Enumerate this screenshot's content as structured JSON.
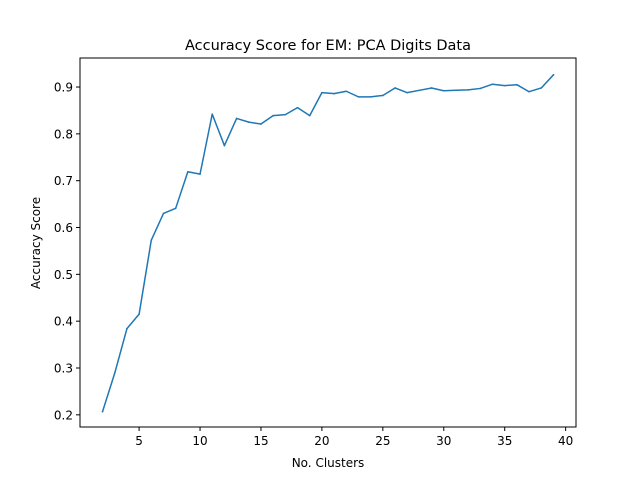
{
  "chart_data": {
    "type": "line",
    "title": "Accuracy Score for EM: PCA Digits Data",
    "xlabel": "No. Clusters",
    "ylabel": "Accuracy Score",
    "xlim": [
      0.15,
      40.85
    ],
    "ylim": [
      0.174,
      0.962
    ],
    "xticks": [
      5,
      10,
      15,
      20,
      25,
      30,
      35,
      40
    ],
    "yticks": [
      0.2,
      0.3,
      0.4,
      0.5,
      0.6,
      0.7,
      0.8,
      0.9
    ],
    "grid": false,
    "line_color": "#1f77b4",
    "series": [
      {
        "x": [
          2,
          3,
          4,
          5,
          6,
          7,
          8,
          9,
          10,
          11,
          12,
          13,
          14,
          15,
          16,
          17,
          18,
          19,
          20,
          21,
          22,
          23,
          24,
          25,
          26,
          27,
          28,
          29,
          30,
          31,
          32,
          33,
          34,
          35,
          36,
          37,
          38,
          39
        ],
        "y": [
          0.207,
          0.289,
          0.384,
          0.415,
          0.573,
          0.63,
          0.641,
          0.719,
          0.714,
          0.842,
          0.775,
          0.833,
          0.825,
          0.821,
          0.839,
          0.841,
          0.856,
          0.839,
          0.888,
          0.886,
          0.891,
          0.879,
          0.879,
          0.882,
          0.898,
          0.888,
          0.893,
          0.898,
          0.892,
          0.893,
          0.894,
          0.897,
          0.906,
          0.903,
          0.905,
          0.89,
          0.898,
          0.926
        ]
      }
    ]
  }
}
